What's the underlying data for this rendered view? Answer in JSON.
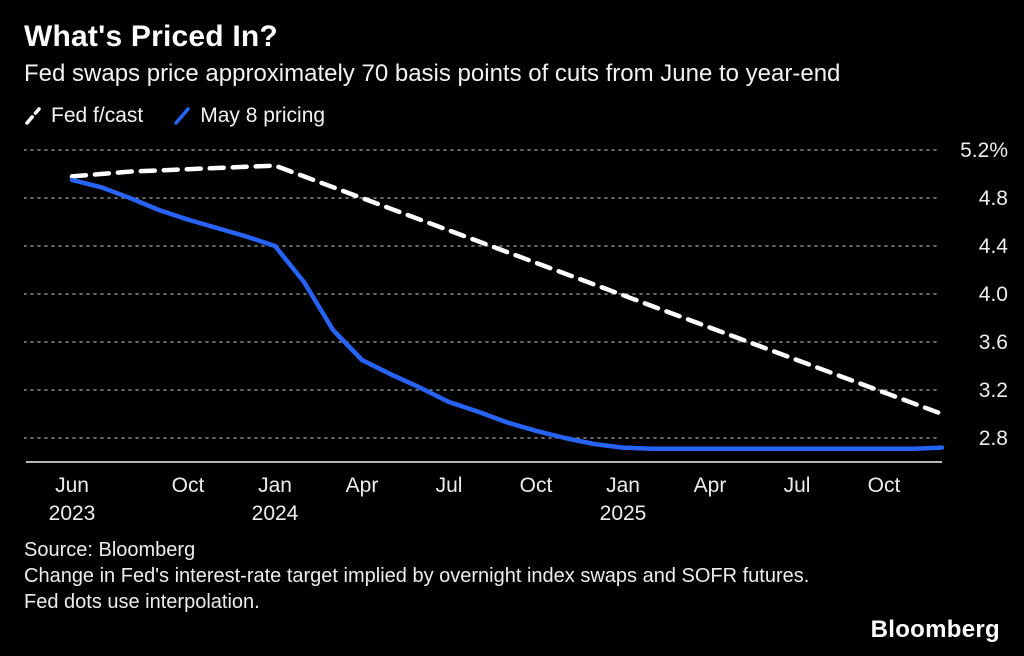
{
  "header": {
    "title": "What's Priced In?",
    "subtitle": "Fed swaps price approximately 70 basis points of cuts from June to year-end"
  },
  "legend": [
    {
      "label": "Fed f/cast",
      "color": "#ffffff",
      "style": "dashed"
    },
    {
      "label": "May 8 pricing",
      "color": "#2763f6",
      "style": "solid"
    }
  ],
  "footer": {
    "source": "Source: Bloomberg",
    "note": "Change in Fed's interest-rate target implied by overnight index swaps and SOFR futures. Fed dots use interpolation.",
    "logo": "Bloomberg"
  },
  "chart_data": {
    "type": "line",
    "title": "What's Priced In?",
    "subtitle": "Fed swaps price approximately 70 basis points of cuts from June to year-end",
    "x_unit": "months from Jun 2023 to Dec 2025",
    "x_ticks": [
      {
        "index": 0,
        "label": "Jun",
        "sublabel": "2023"
      },
      {
        "index": 4,
        "label": "Oct",
        "sublabel": ""
      },
      {
        "index": 7,
        "label": "Jan",
        "sublabel": "2024"
      },
      {
        "index": 10,
        "label": "Apr",
        "sublabel": ""
      },
      {
        "index": 13,
        "label": "Jul",
        "sublabel": ""
      },
      {
        "index": 16,
        "label": "Oct",
        "sublabel": ""
      },
      {
        "index": 19,
        "label": "Jan",
        "sublabel": "2025"
      },
      {
        "index": 22,
        "label": "Apr",
        "sublabel": ""
      },
      {
        "index": 25,
        "label": "Jul",
        "sublabel": ""
      },
      {
        "index": 28,
        "label": "Oct",
        "sublabel": ""
      }
    ],
    "y_ticks": [
      5.2,
      4.8,
      4.4,
      4.0,
      3.6,
      3.2,
      2.8
    ],
    "y_tick_labels": [
      "5.2%",
      "4.8",
      "4.4",
      "4.0",
      "3.6",
      "3.2",
      "2.8"
    ],
    "ylim": [
      2.6,
      5.35
    ],
    "grid": "dotted-horizontal",
    "legend_position": "top-left",
    "series": [
      {
        "name": "Fed f/cast",
        "style": "dashed",
        "color": "#ffffff",
        "values": [
          4.98,
          5.0,
          5.02,
          5.03,
          5.04,
          5.05,
          5.06,
          5.07,
          4.98,
          4.89,
          4.8,
          4.71,
          4.62,
          4.53,
          4.44,
          4.35,
          4.26,
          4.17,
          4.08,
          3.99,
          3.9,
          3.81,
          3.72,
          3.63,
          3.54,
          3.45,
          3.36,
          3.27,
          3.18,
          3.09,
          3.0
        ]
      },
      {
        "name": "May 8 pricing",
        "style": "solid",
        "color": "#2763f6",
        "values": [
          4.95,
          4.89,
          4.8,
          4.7,
          4.62,
          4.55,
          4.48,
          4.4,
          4.1,
          3.7,
          3.45,
          3.33,
          3.22,
          3.1,
          3.02,
          2.93,
          2.86,
          2.8,
          2.75,
          2.72,
          2.71,
          2.71,
          2.71,
          2.71,
          2.71,
          2.71,
          2.71,
          2.71,
          2.71,
          2.71,
          2.72
        ]
      }
    ]
  }
}
